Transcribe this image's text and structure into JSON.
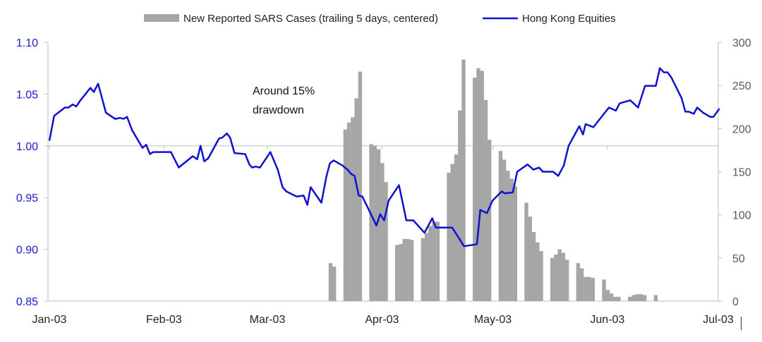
{
  "chart_data": {
    "type": "bar+line",
    "legend": {
      "placement": "top-center",
      "entries": [
        {
          "label": "New Reported SARS Cases (trailing 5 days, centered)",
          "kind": "bar",
          "color": "#a6a6a6"
        },
        {
          "label": "Hong Kong Equities",
          "kind": "line",
          "color": "#1010d0"
        }
      ]
    },
    "annotation": {
      "lines": [
        "Around 15%",
        "drawdown"
      ]
    },
    "x_axis": {
      "unit": "days since 2003-01-01",
      "range": [
        0,
        181
      ],
      "ticks": [
        {
          "day": 0,
          "label": "Jan-03"
        },
        {
          "day": 31,
          "label": "Feb-03"
        },
        {
          "day": 59,
          "label": "Mar-03"
        },
        {
          "day": 90,
          "label": "Apr-03"
        },
        {
          "day": 120,
          "label": "May-03"
        },
        {
          "day": 151,
          "label": "Jun-03"
        },
        {
          "day": 181,
          "label": "Jul-03"
        }
      ]
    },
    "y_left": {
      "range": [
        0.85,
        1.1
      ],
      "ticks": [
        "0.85",
        "0.90",
        "0.95",
        "1.00",
        "1.05",
        "1.10"
      ],
      "color": "#1a1ad0",
      "gridline": 1.0
    },
    "y_right": {
      "range": [
        0,
        300
      ],
      "ticks": [
        "0",
        "50",
        "100",
        "150",
        "200",
        "250",
        "300"
      ],
      "color": "#595959"
    },
    "bar_groups": [
      {
        "start_day": 76,
        "values": [
          44,
          40
        ]
      },
      {
        "start_day": 80,
        "values": [
          199,
          207,
          213,
          235,
          266
        ]
      },
      {
        "start_day": 87,
        "values": [
          182,
          180,
          176,
          160,
          138
        ]
      },
      {
        "start_day": 94,
        "values": [
          65,
          66,
          72,
          72,
          71
        ]
      },
      {
        "start_day": 101,
        "values": [
          73,
          79,
          87,
          92,
          92
        ]
      },
      {
        "start_day": 108,
        "values": [
          149,
          159,
          170,
          221,
          280
        ]
      },
      {
        "start_day": 115,
        "values": [
          259,
          270,
          267,
          233,
          187
        ]
      },
      {
        "start_day": 122,
        "values": [
          174,
          164,
          151,
          142,
          133
        ]
      },
      {
        "start_day": 129,
        "values": [
          114,
          98,
          80,
          68,
          58
        ]
      },
      {
        "start_day": 136,
        "values": [
          50,
          54,
          60,
          56,
          48
        ]
      },
      {
        "start_day": 143,
        "values": [
          44,
          38,
          28,
          28,
          27
        ]
      },
      {
        "start_day": 150,
        "values": [
          25,
          13,
          9,
          5,
          5
        ]
      },
      {
        "start_day": 157,
        "values": [
          5,
          7,
          8,
          8,
          7
        ]
      },
      {
        "start_day": 164,
        "values": [
          7
        ]
      }
    ],
    "line": [
      [
        0,
        1.005
      ],
      [
        1.3,
        1.029
      ],
      [
        4.2,
        1.037
      ],
      [
        5.2,
        1.037
      ],
      [
        6.3,
        1.04
      ],
      [
        7.3,
        1.038
      ],
      [
        8.2,
        1.043
      ],
      [
        11.1,
        1.056
      ],
      [
        12,
        1.052
      ],
      [
        13.2,
        1.06
      ],
      [
        15.3,
        1.032
      ],
      [
        17.8,
        1.026
      ],
      [
        19.1,
        1.027
      ],
      [
        20.1,
        1.026
      ],
      [
        21,
        1.028
      ],
      [
        22.4,
        1.015
      ],
      [
        25.2,
        0.998
      ],
      [
        26.2,
        1.001
      ],
      [
        27.2,
        0.992
      ],
      [
        28.1,
        0.994
      ],
      [
        32.9,
        0.994
      ],
      [
        35,
        0.979
      ],
      [
        38.8,
        0.99
      ],
      [
        40,
        0.987
      ],
      [
        40.9,
        1.0
      ],
      [
        41.9,
        0.985
      ],
      [
        43,
        0.988
      ],
      [
        45.9,
        1.007
      ],
      [
        46.8,
        1.008
      ],
      [
        48,
        1.012
      ],
      [
        48.9,
        1.008
      ],
      [
        50.1,
        0.993
      ],
      [
        53,
        0.992
      ],
      [
        54.1,
        0.982
      ],
      [
        54.9,
        0.979
      ],
      [
        55.8,
        0.98
      ],
      [
        57,
        0.979
      ],
      [
        59.8,
        0.994
      ],
      [
        61.8,
        0.977
      ],
      [
        63.1,
        0.96
      ],
      [
        64.1,
        0.956
      ],
      [
        66.9,
        0.951
      ],
      [
        68.8,
        0.952
      ],
      [
        69.8,
        0.943
      ],
      [
        70.7,
        0.96
      ],
      [
        73.6,
        0.945
      ],
      [
        75,
        0.971
      ],
      [
        75.9,
        0.983
      ],
      [
        76.9,
        0.986
      ],
      [
        79.3,
        0.981
      ],
      [
        80.7,
        0.977
      ],
      [
        81.6,
        0.973
      ],
      [
        82.6,
        0.971
      ],
      [
        83.7,
        0.952
      ],
      [
        84.7,
        0.951
      ],
      [
        88.5,
        0.923
      ],
      [
        89.5,
        0.934
      ],
      [
        90.6,
        0.928
      ],
      [
        91.8,
        0.947
      ],
      [
        94.6,
        0.962
      ],
      [
        96.6,
        0.928
      ],
      [
        98.5,
        0.928
      ],
      [
        101.5,
        0.916
      ],
      [
        103.6,
        0.93
      ],
      [
        104.6,
        0.921
      ],
      [
        109,
        0.921
      ],
      [
        109.9,
        0.916
      ],
      [
        112.2,
        0.903
      ],
      [
        115.7,
        0.905
      ],
      [
        116.6,
        0.938
      ],
      [
        118.4,
        0.935
      ],
      [
        119.9,
        0.947
      ],
      [
        122.4,
        0.956
      ],
      [
        123.3,
        0.954
      ],
      [
        125.4,
        0.955
      ],
      [
        126.6,
        0.975
      ],
      [
        129.4,
        0.982
      ],
      [
        131,
        0.977
      ],
      [
        132.5,
        0.979
      ],
      [
        133.5,
        0.975
      ],
      [
        136.3,
        0.975
      ],
      [
        137.7,
        0.971
      ],
      [
        139.2,
        0.981
      ],
      [
        140.5,
        1.0
      ],
      [
        143.4,
        1.019
      ],
      [
        144.4,
        1.011
      ],
      [
        145.1,
        1.021
      ],
      [
        147.2,
        1.018
      ],
      [
        151.4,
        1.037
      ],
      [
        153.3,
        1.034
      ],
      [
        154.3,
        1.041
      ],
      [
        157.2,
        1.044
      ],
      [
        159.3,
        1.037
      ],
      [
        161.2,
        1.058
      ],
      [
        164.1,
        1.058
      ],
      [
        165.2,
        1.075
      ],
      [
        166.3,
        1.071
      ],
      [
        167.3,
        1.071
      ],
      [
        168.3,
        1.066
      ],
      [
        171.1,
        1.046
      ],
      [
        172.1,
        1.033
      ],
      [
        173,
        1.033
      ],
      [
        174.4,
        1.031
      ],
      [
        175.3,
        1.037
      ],
      [
        176.9,
        1.032
      ],
      [
        178.8,
        1.028
      ],
      [
        179.7,
        1.028
      ],
      [
        181.3,
        1.036
      ]
    ]
  }
}
